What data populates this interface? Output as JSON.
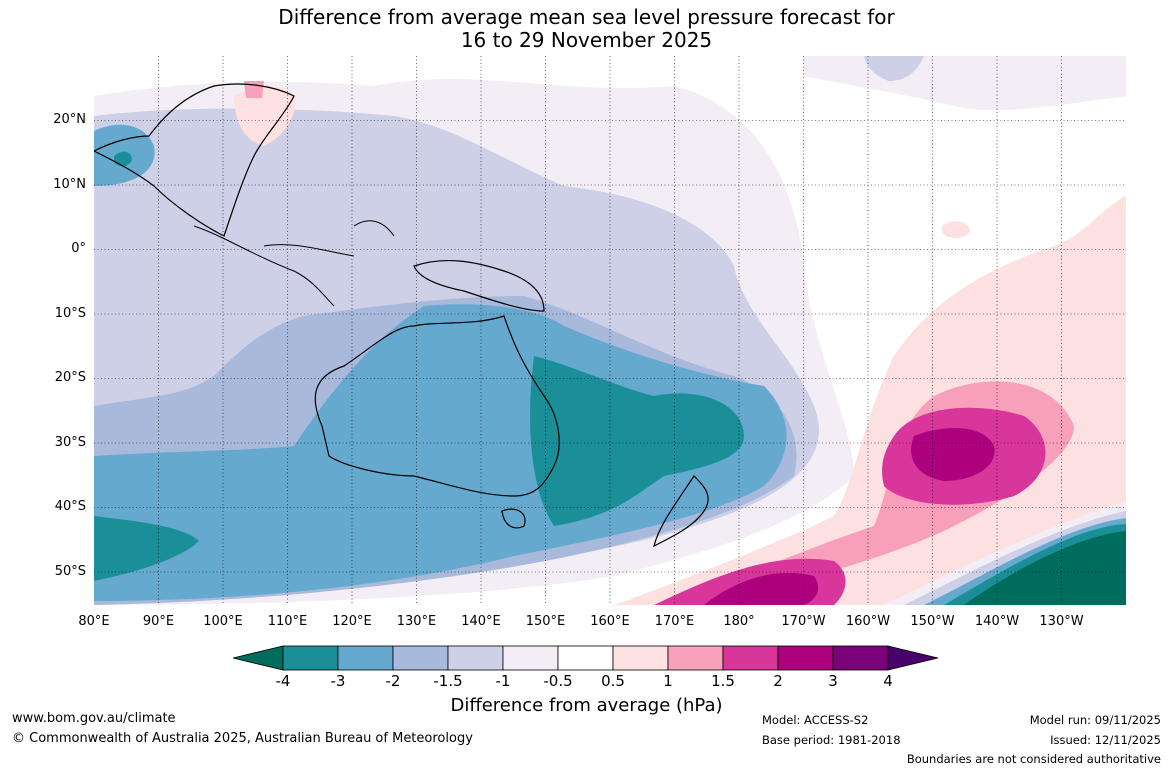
{
  "title": {
    "line1": "Difference from average mean sea level pressure forecast for",
    "line2": "16 to 29 November 2025"
  },
  "map": {
    "lat_labels": [
      "20°N",
      "10°N",
      "0°",
      "10°S",
      "20°S",
      "30°S",
      "40°S",
      "50°S"
    ],
    "lon_labels": [
      "80°E",
      "90°E",
      "100°E",
      "110°E",
      "120°E",
      "130°E",
      "140°E",
      "150°E",
      "160°E",
      "170°E",
      "180°",
      "170°W",
      "160°W",
      "150°W",
      "140°W",
      "130°W"
    ]
  },
  "colorbar": {
    "title": "Difference from average (hPa)",
    "tick_labels": [
      "-4",
      "-3",
      "-2",
      "-1.5",
      "-1",
      "-0.5",
      "0.5",
      "1",
      "1.5",
      "2",
      "3",
      "4"
    ],
    "colors": [
      "#006c5e",
      "#1b8f98",
      "#66a9cf",
      "#a8b9db",
      "#cdd0e6",
      "#f3eef6",
      "#ffffff",
      "#fde0e0",
      "#f89fbb",
      "#d8369a",
      "#ae017e",
      "#7a0177",
      "#49006a"
    ]
  },
  "footer": {
    "website": "www.bom.gov.au/climate",
    "copyright": "© Commonwealth of Australia 2025, Australian Bureau of Meteorology",
    "model": "Model: ACCESS-S2",
    "base_period": "Base period: 1981-2018",
    "model_run": "Model run: 09/11/2025",
    "issued": "Issued: 12/11/2025",
    "disclaimer": "Boundaries are not considered authoritative"
  }
}
